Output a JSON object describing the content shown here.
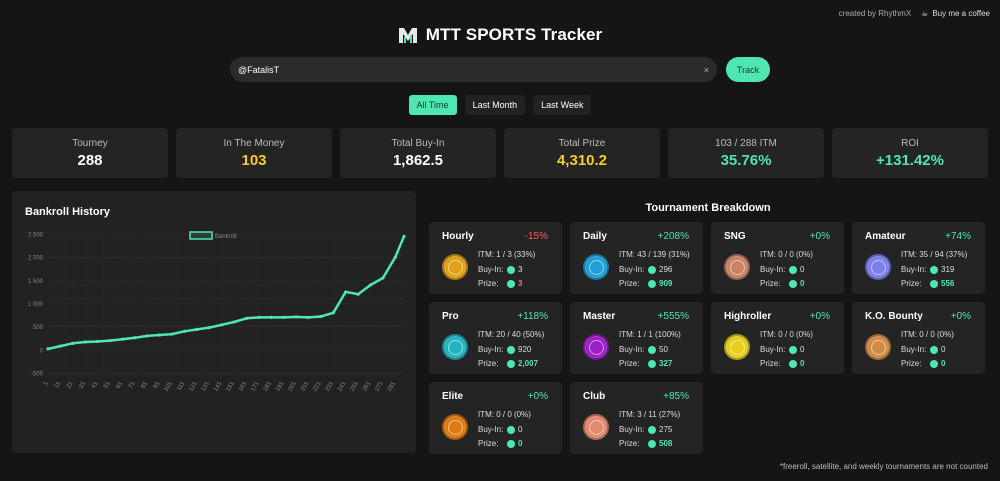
{
  "credits": {
    "created_by": "created by RhythmX",
    "coffee": "Buy me a coffee"
  },
  "header": {
    "title": "MTT SPORTS Tracker"
  },
  "search": {
    "value": "@FatalisT",
    "clear": "×",
    "button": "Track"
  },
  "filters": [
    {
      "label": "All Time",
      "active": true
    },
    {
      "label": "Last Month",
      "active": false
    },
    {
      "label": "Last Week",
      "active": false
    }
  ],
  "stats": [
    {
      "label": "Tourney",
      "value": "288",
      "color": "white"
    },
    {
      "label": "In The Money",
      "value": "103",
      "color": "gold"
    },
    {
      "label": "Total Buy-In",
      "value": "1,862.5",
      "color": "white"
    },
    {
      "label": "Total Prize",
      "value": "4,310.2",
      "color": "gold"
    },
    {
      "label": "103 / 288 ITM",
      "value": "35.76%",
      "color": "green"
    },
    {
      "label": "ROI",
      "value": "+131.42%",
      "color": "green"
    }
  ],
  "bankroll": {
    "title": "Bankroll History",
    "chart_data": {
      "type": "line",
      "series": [
        {
          "name": "Bankroll",
          "color": "#4ee6b1",
          "x": [
            1,
            11,
            21,
            31,
            41,
            51,
            61,
            71,
            81,
            91,
            101,
            111,
            121,
            131,
            141,
            151,
            161,
            171,
            181,
            191,
            201,
            211,
            221,
            231,
            241,
            251,
            261,
            271,
            281,
            288
          ],
          "y": [
            20,
            80,
            140,
            170,
            180,
            200,
            230,
            260,
            300,
            320,
            340,
            400,
            440,
            480,
            540,
            600,
            680,
            700,
            700,
            700,
            710,
            700,
            720,
            800,
            1250,
            1200,
            1400,
            1550,
            2000,
            2450
          ]
        }
      ],
      "x_ticks": [
        "1",
        "11",
        "21",
        "31",
        "41",
        "51",
        "61",
        "71",
        "81",
        "91",
        "101",
        "111",
        "121",
        "131",
        "141",
        "151",
        "161",
        "171",
        "181",
        "191",
        "201",
        "211",
        "221",
        "231",
        "241",
        "251",
        "261",
        "271",
        "281"
      ],
      "y_ticks": [
        "2 500",
        "2 000",
        "1 500",
        "1 000",
        "500",
        "0",
        "-500"
      ],
      "ylim": [
        -500,
        2500
      ],
      "grid": true,
      "legend": "top-center"
    }
  },
  "breakdown": {
    "title": "Tournament Breakdown",
    "labels": {
      "buyin": "Buy-In:",
      "prize": "Prize:"
    },
    "cards": [
      {
        "name": "Hourly",
        "pct": "-15%",
        "pct_color": "red",
        "itm": "ITM: 1 / 3 (33%)",
        "buyin": "3",
        "prize": "3",
        "prize_color": "red",
        "badge": "#e0a116"
      },
      {
        "name": "Daily",
        "pct": "+208%",
        "pct_color": "green",
        "itm": "ITM: 43 / 139 (31%)",
        "buyin": "296",
        "prize": "909",
        "prize_color": "green",
        "badge": "#1f9fd6"
      },
      {
        "name": "SNG",
        "pct": "+0%",
        "pct_color": "green",
        "itm": "ITM: 0 / 0 (0%)",
        "buyin": "0",
        "prize": "0",
        "prize_color": "green",
        "badge": "#c98266"
      },
      {
        "name": "Amateur",
        "pct": "+74%",
        "pct_color": "green",
        "itm": "ITM: 35 / 94 (37%)",
        "buyin": "319",
        "prize": "556",
        "prize_color": "green",
        "badge": "#7c7ff0"
      },
      {
        "name": "Pro",
        "pct": "+118%",
        "pct_color": "green",
        "itm": "ITM: 20 / 40 (50%)",
        "buyin": "920",
        "prize": "2,007",
        "prize_color": "green",
        "badge": "#21b3bf"
      },
      {
        "name": "Master",
        "pct": "+555%",
        "pct_color": "green",
        "itm": "ITM: 1 / 1 (100%)",
        "buyin": "50",
        "prize": "327",
        "prize_color": "green",
        "badge": "#9a1fc4"
      },
      {
        "name": "Highroller",
        "pct": "+0%",
        "pct_color": "green",
        "itm": "ITM: 0 / 0 (0%)",
        "buyin": "0",
        "prize": "0",
        "prize_color": "green",
        "badge": "#e6cf1c"
      },
      {
        "name": "K.O. Bounty",
        "pct": "+0%",
        "pct_color": "green",
        "itm": "ITM: 0 / 0 (0%)",
        "buyin": "0",
        "prize": "0",
        "prize_color": "green",
        "badge": "#d08a46"
      },
      {
        "name": "Elite",
        "pct": "+0%",
        "pct_color": "green",
        "itm": "ITM: 0 / 0 (0%)",
        "buyin": "0",
        "prize": "0",
        "prize_color": "green",
        "badge": "#e07a10"
      },
      {
        "name": "Club",
        "pct": "+85%",
        "pct_color": "green",
        "itm": "ITM: 3 / 11 (27%)",
        "buyin": "275",
        "prize": "508",
        "prize_color": "green",
        "badge": "#e38a6e"
      }
    ]
  },
  "footnote": "*freeroll, satellite, and weekly tournaments are not counted"
}
